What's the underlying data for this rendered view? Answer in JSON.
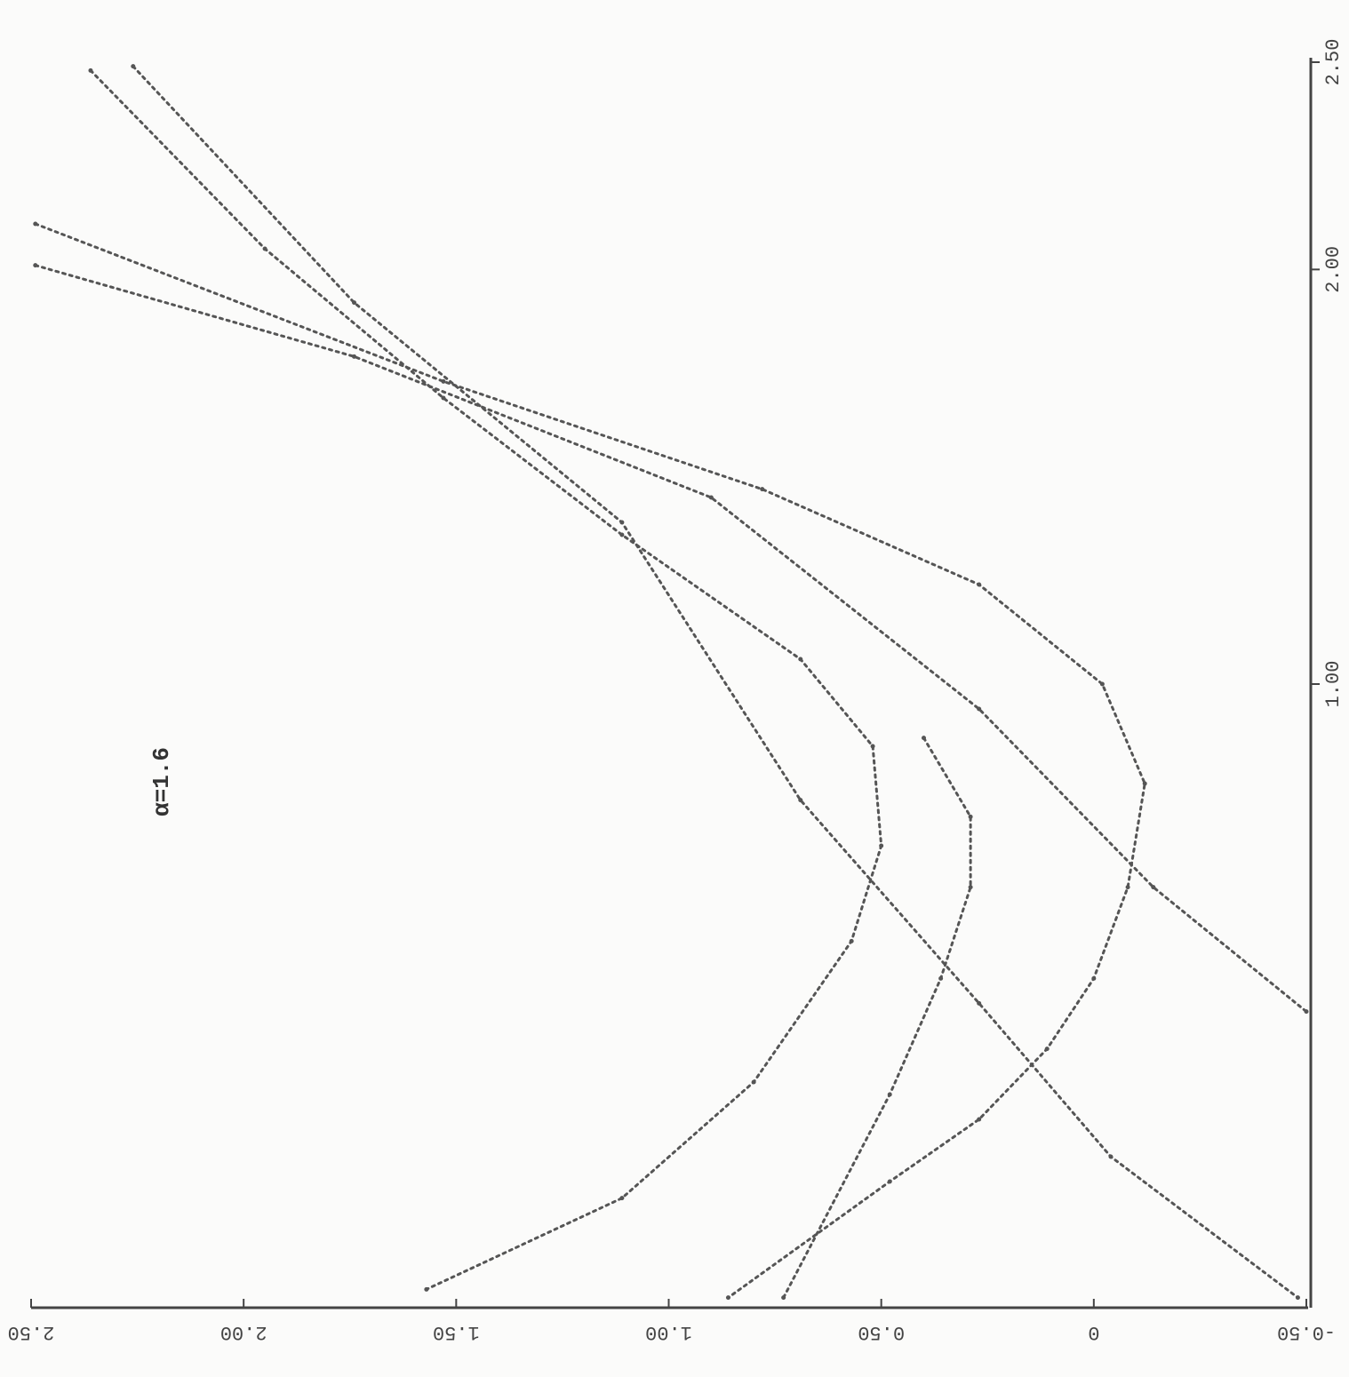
{
  "chart_data": {
    "type": "line",
    "annotation": "α=1.6",
    "xlim": [
      2.5,
      -0.5
    ],
    "ylim": [
      -0.5,
      2.5
    ],
    "xticks": [
      {
        "value": 2.5,
        "label": "2.50"
      },
      {
        "value": 2.0,
        "label": "2.00"
      },
      {
        "value": 1.5,
        "label": "1.50"
      },
      {
        "value": 1.0,
        "label": "1.00"
      },
      {
        "value": 0.5,
        "label": "0.50"
      },
      0,
      {
        "value": -0.5,
        "label": "-0.50"
      }
    ],
    "yticks": [
      {
        "value": 2.5,
        "label": "2.50"
      },
      {
        "value": 2.0,
        "label": "2.00"
      },
      {
        "value": 1.0,
        "label": "1.00"
      }
    ],
    "series": [
      {
        "color": "#555555",
        "x": [
          2.49,
          1.53,
          0.78,
          0.27,
          -0.02,
          -0.12,
          -0.08,
          0.0,
          0.11,
          0.27,
          0.48,
          0.86
        ],
        "y": [
          2.11,
          1.73,
          1.47,
          1.24,
          1.0,
          0.76,
          0.51,
          0.29,
          0.12,
          -0.05,
          -0.2,
          -0.48
        ]
      },
      {
        "color": "#555555",
        "x": [
          2.36,
          1.95,
          1.53,
          1.11,
          0.69,
          0.52,
          0.5,
          0.57,
          0.8,
          1.11,
          1.57
        ],
        "y": [
          2.48,
          2.05,
          1.69,
          1.36,
          1.06,
          0.85,
          0.61,
          0.38,
          0.04,
          -0.24,
          -0.46
        ]
      },
      {
        "color": "#555555",
        "x": [
          2.49,
          1.74,
          0.9,
          0.27,
          -0.14,
          -0.5
        ],
        "y": [
          2.01,
          1.79,
          1.45,
          0.94,
          0.51,
          0.21
        ]
      },
      {
        "color": "#555555",
        "x": [
          2.26,
          1.74,
          1.11,
          0.69,
          0.27,
          -0.04,
          -0.48
        ],
        "y": [
          2.49,
          1.92,
          1.39,
          0.72,
          0.23,
          -0.14,
          -0.48
        ]
      },
      {
        "color": "#555555",
        "x": [
          0.4,
          0.29,
          0.29,
          0.36,
          0.48,
          0.73
        ],
        "y": [
          0.87,
          0.68,
          0.51,
          0.29,
          0.01,
          -0.48
        ]
      }
    ]
  }
}
